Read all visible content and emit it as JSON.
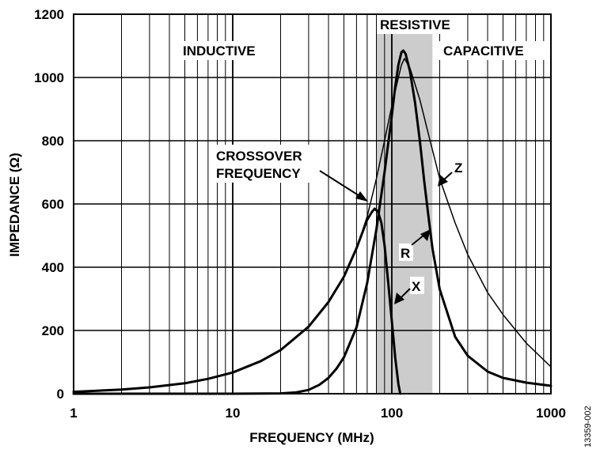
{
  "chart_data": {
    "type": "line",
    "xlabel": "FREQUENCY (MHz)",
    "ylabel": "IMPEDANCE (Ω)",
    "xscale": "log",
    "xlim": [
      1,
      1000
    ],
    "ylim": [
      0,
      1200
    ],
    "x_ticks": [
      1,
      10,
      100,
      1000
    ],
    "x_tick_labels": [
      "1",
      "10",
      "100",
      "1000"
    ],
    "y_ticks": [
      0,
      200,
      400,
      600,
      800,
      1000,
      1200
    ],
    "y_tick_labels": [
      "0",
      "200",
      "400",
      "600",
      "800",
      "1000",
      "1200"
    ],
    "grid": true,
    "legend": "none",
    "shaded_region": {
      "label": "RESISTIVE",
      "x_range": [
        80,
        180
      ],
      "color": "#cccccc"
    },
    "region_labels": {
      "inductive": "INDUCTIVE",
      "resistive": "RESISTIVE",
      "capacitive": "CAPACITIVE"
    },
    "annotations": {
      "crossover_line1": "CROSSOVER",
      "crossover_line2": "FREQUENCY",
      "z": "Z",
      "r": "R",
      "x": "X"
    },
    "series": [
      {
        "name": "Z",
        "stroke_width": 1.5,
        "points": [
          [
            1,
            6
          ],
          [
            2,
            13
          ],
          [
            3,
            20
          ],
          [
            5,
            33
          ],
          [
            7,
            47
          ],
          [
            10,
            67
          ],
          [
            15,
            103
          ],
          [
            20,
            138
          ],
          [
            30,
            212
          ],
          [
            40,
            290
          ],
          [
            50,
            370
          ],
          [
            60,
            460
          ],
          [
            70,
            560
          ],
          [
            80,
            680
          ],
          [
            90,
            800
          ],
          [
            100,
            910
          ],
          [
            110,
            1000
          ],
          [
            115,
            1040
          ],
          [
            120,
            1060
          ],
          [
            130,
            1030
          ],
          [
            150,
            930
          ],
          [
            170,
            820
          ],
          [
            200,
            680
          ],
          [
            250,
            540
          ],
          [
            300,
            440
          ],
          [
            400,
            320
          ],
          [
            500,
            250
          ],
          [
            700,
            160
          ],
          [
            1000,
            85
          ]
        ]
      },
      {
        "name": "R",
        "stroke_width": 3,
        "points": [
          [
            1,
            0
          ],
          [
            10,
            0
          ],
          [
            20,
            1
          ],
          [
            25,
            4
          ],
          [
            30,
            12
          ],
          [
            35,
            28
          ],
          [
            40,
            50
          ],
          [
            45,
            80
          ],
          [
            50,
            115
          ],
          [
            60,
            210
          ],
          [
            70,
            350
          ],
          [
            80,
            520
          ],
          [
            90,
            700
          ],
          [
            100,
            880
          ],
          [
            105,
            970
          ],
          [
            110,
            1040
          ],
          [
            115,
            1080
          ],
          [
            118,
            1085
          ],
          [
            122,
            1075
          ],
          [
            130,
            1020
          ],
          [
            140,
            920
          ],
          [
            150,
            800
          ],
          [
            160,
            670
          ],
          [
            170,
            560
          ],
          [
            180,
            460
          ],
          [
            200,
            330
          ],
          [
            250,
            180
          ],
          [
            300,
            120
          ],
          [
            400,
            70
          ],
          [
            500,
            50
          ],
          [
            700,
            35
          ],
          [
            1000,
            25
          ]
        ]
      },
      {
        "name": "X",
        "stroke_width": 3,
        "points": [
          [
            1,
            6
          ],
          [
            2,
            13
          ],
          [
            3,
            20
          ],
          [
            5,
            33
          ],
          [
            7,
            47
          ],
          [
            10,
            67
          ],
          [
            15,
            103
          ],
          [
            20,
            138
          ],
          [
            30,
            212
          ],
          [
            40,
            290
          ],
          [
            50,
            370
          ],
          [
            60,
            460
          ],
          [
            70,
            550
          ],
          [
            75,
            575
          ],
          [
            78,
            585
          ],
          [
            82,
            575
          ],
          [
            86,
            540
          ],
          [
            90,
            470
          ],
          [
            95,
            350
          ],
          [
            100,
            230
          ],
          [
            105,
            115
          ],
          [
            110,
            30
          ],
          [
            113,
            0
          ]
        ]
      }
    ],
    "figure_id": "13359-002"
  }
}
